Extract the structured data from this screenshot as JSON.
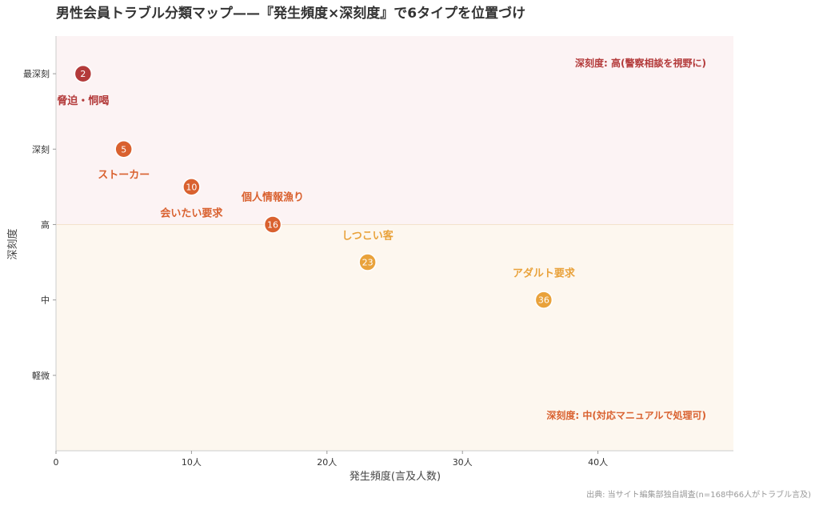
{
  "chart_data": {
    "type": "scatter",
    "title": "男性会員トラブル分類マップ——『発生頻度×深刻度』で6タイプを位置づけ",
    "xlabel": "発生頻度(言及人数)",
    "ylabel": "深刻度",
    "xlim": [
      0,
      50
    ],
    "x_ticks": [
      {
        "value": 0,
        "label": "0"
      },
      {
        "value": 10,
        "label": "10人"
      },
      {
        "value": 20,
        "label": "20人"
      },
      {
        "value": 30,
        "label": "30人"
      },
      {
        "value": 40,
        "label": "40人"
      }
    ],
    "ylim": [
      0,
      5.5
    ],
    "y_ticks": [
      {
        "value": 1,
        "label": "軽微"
      },
      {
        "value": 2,
        "label": "中"
      },
      {
        "value": 3,
        "label": "高"
      },
      {
        "value": 4,
        "label": "深刻"
      },
      {
        "value": 5,
        "label": "最深刻"
      }
    ],
    "zones": [
      {
        "from": 3,
        "to": 5.5,
        "color": "#fcf3f4",
        "note": "深刻度: 高(警察相談を視野に)",
        "note_color": "#b33a3a"
      },
      {
        "from": 0,
        "to": 3,
        "color": "#fdf7ef",
        "note": "深刻度: 中(対応マニュアルで処理可)",
        "note_color": "#d9612f"
      }
    ],
    "points": [
      {
        "x": 2,
        "y": 5,
        "value": "2",
        "label": "脅迫・恫喝",
        "color": "#b33a3a"
      },
      {
        "x": 5,
        "y": 4,
        "value": "5",
        "label": "ストーカー",
        "color": "#d9612f"
      },
      {
        "x": 10,
        "y": 3.5,
        "value": "10",
        "label": "会いたい要求",
        "color": "#d9612f"
      },
      {
        "x": 16,
        "y": 3,
        "value": "16",
        "label": "個人情報漁り",
        "color": "#d9612f"
      },
      {
        "x": 23,
        "y": 2.5,
        "value": "23",
        "label": "しつこい客",
        "color": "#e9a23b"
      },
      {
        "x": 36,
        "y": 2,
        "value": "36",
        "label": "アダルト要求",
        "color": "#e9a23b"
      }
    ],
    "grid": false,
    "legend": "none"
  },
  "source": "出典: 当サイト編集部独自調査(n=168中66人がトラブル言及)"
}
